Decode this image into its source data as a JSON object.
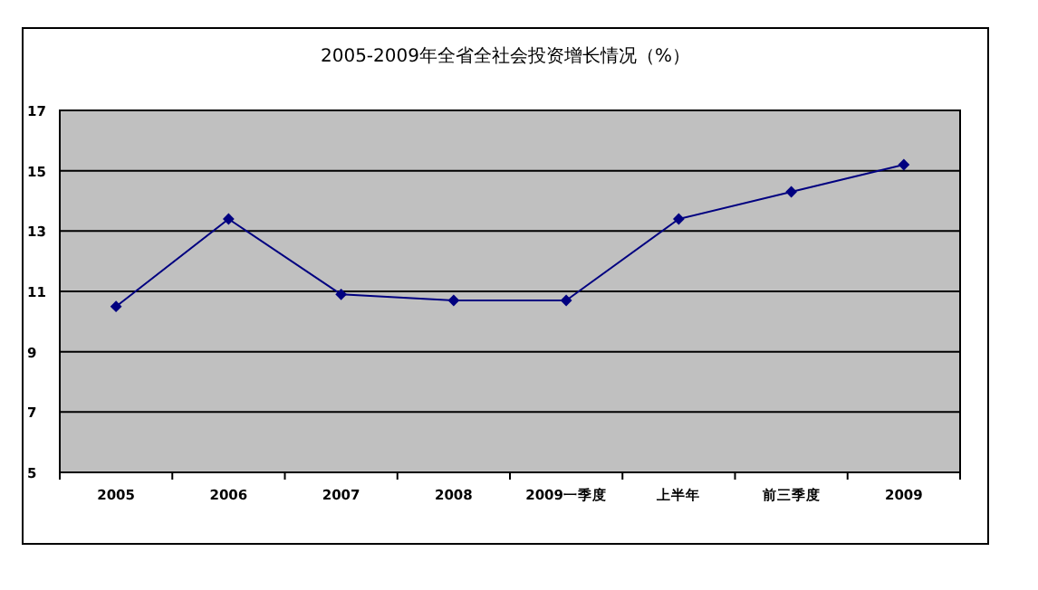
{
  "chart_data": {
    "type": "line",
    "title": "2005-2009年全省全社会投资增长情况（%）",
    "categories": [
      "2005",
      "2006",
      "2007",
      "2008",
      "2009一季度",
      "上半年",
      "前三季度",
      "2009"
    ],
    "series": [
      {
        "color": "#000080",
        "values": [
          10.5,
          13.4,
          10.9,
          10.7,
          10.7,
          13.4,
          14.3,
          15.2
        ]
      }
    ],
    "ylim": [
      5,
      17
    ],
    "yticks": [
      5,
      7,
      9,
      11,
      13,
      15,
      17
    ],
    "grid": "y",
    "marker": "diamond",
    "line_style": "solid"
  }
}
